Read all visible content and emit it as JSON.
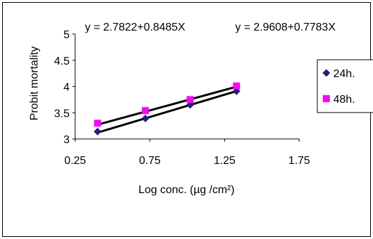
{
  "chart_data": {
    "type": "scatter",
    "xlabel": "Log conc. (µg /cm²)",
    "ylabel": "Probit mortality",
    "xlim": [
      0.25,
      1.75
    ],
    "ylim": [
      3,
      5
    ],
    "xticks": [
      0.25,
      0.75,
      1.25,
      1.75
    ],
    "yticks": [
      3,
      3.5,
      4,
      4.5,
      5
    ],
    "xtick_labels": [
      "0.25",
      "0.75",
      "1.25",
      "1.75"
    ],
    "ytick_labels": [
      "3",
      "3.5",
      "4",
      "4.5",
      "5"
    ],
    "grid": false,
    "legend_position": "right",
    "annotations": [
      "y = 2.7822+0.8485X",
      "y = 2.9608+0.7783X"
    ],
    "series": [
      {
        "name": "24h.",
        "marker": "diamond",
        "color": "#1f1f7a",
        "x": [
          0.4,
          0.72,
          1.02,
          1.33
        ],
        "y": [
          3.14,
          3.39,
          3.65,
          3.91
        ],
        "trendline": {
          "intercept": 2.7822,
          "slope": 0.8485
        }
      },
      {
        "name": "48h.",
        "marker": "square",
        "color": "#ff00ff",
        "x": [
          0.4,
          0.72,
          1.02,
          1.33
        ],
        "y": [
          3.3,
          3.54,
          3.75,
          4.01
        ],
        "trendline": {
          "intercept": 2.9608,
          "slope": 0.7783
        }
      }
    ]
  }
}
